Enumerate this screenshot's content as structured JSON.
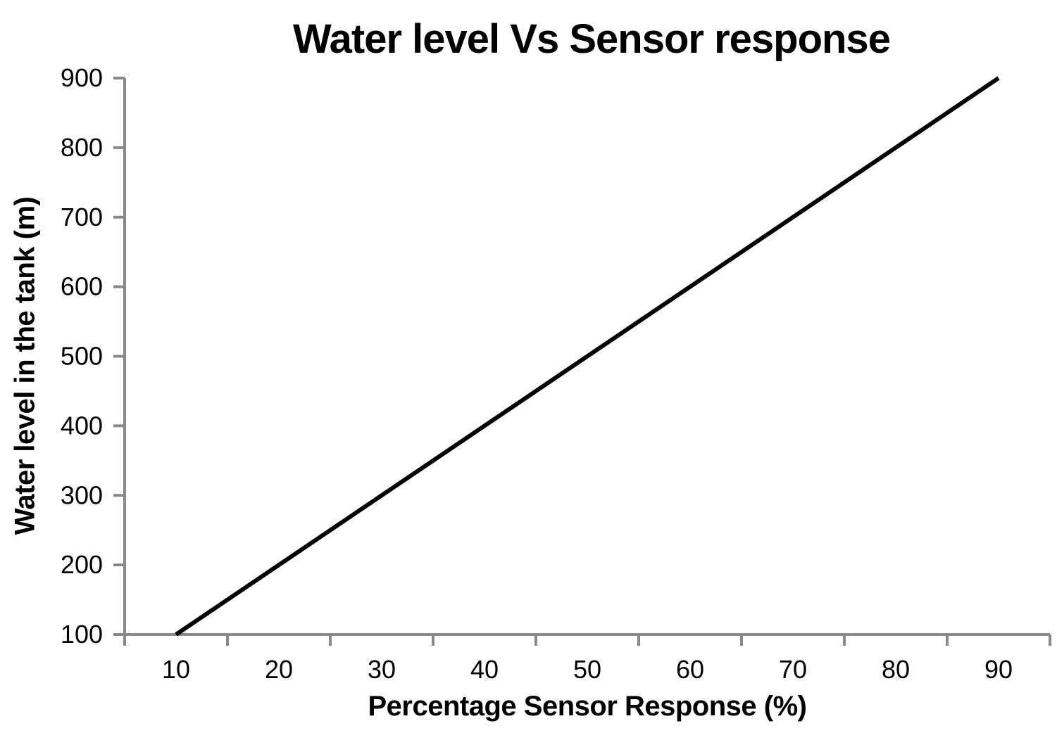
{
  "chart_data": {
    "type": "line",
    "title": "Water level Vs Sensor response",
    "xlabel": "Percentage Sensor Response (%)",
    "ylabel": "Water level in the tank (m)",
    "x": [
      10,
      20,
      30,
      40,
      50,
      60,
      70,
      80,
      90
    ],
    "series": [
      {
        "values": [
          100,
          200,
          300,
          400,
          500,
          600,
          700,
          800,
          900
        ]
      }
    ],
    "x_tick_labels": [
      "10",
      "20",
      "30",
      "40",
      "50",
      "60",
      "70",
      "80",
      "90"
    ],
    "y_ticks": [
      100,
      200,
      300,
      400,
      500,
      600,
      700,
      800,
      900
    ],
    "ylim": [
      100,
      900
    ],
    "x_axis_type": "category",
    "grid": false,
    "legend": false,
    "markers": false,
    "colors": {
      "line": "#000000",
      "axis": "#898989",
      "text": "#000000",
      "background": "#ffffff"
    }
  }
}
